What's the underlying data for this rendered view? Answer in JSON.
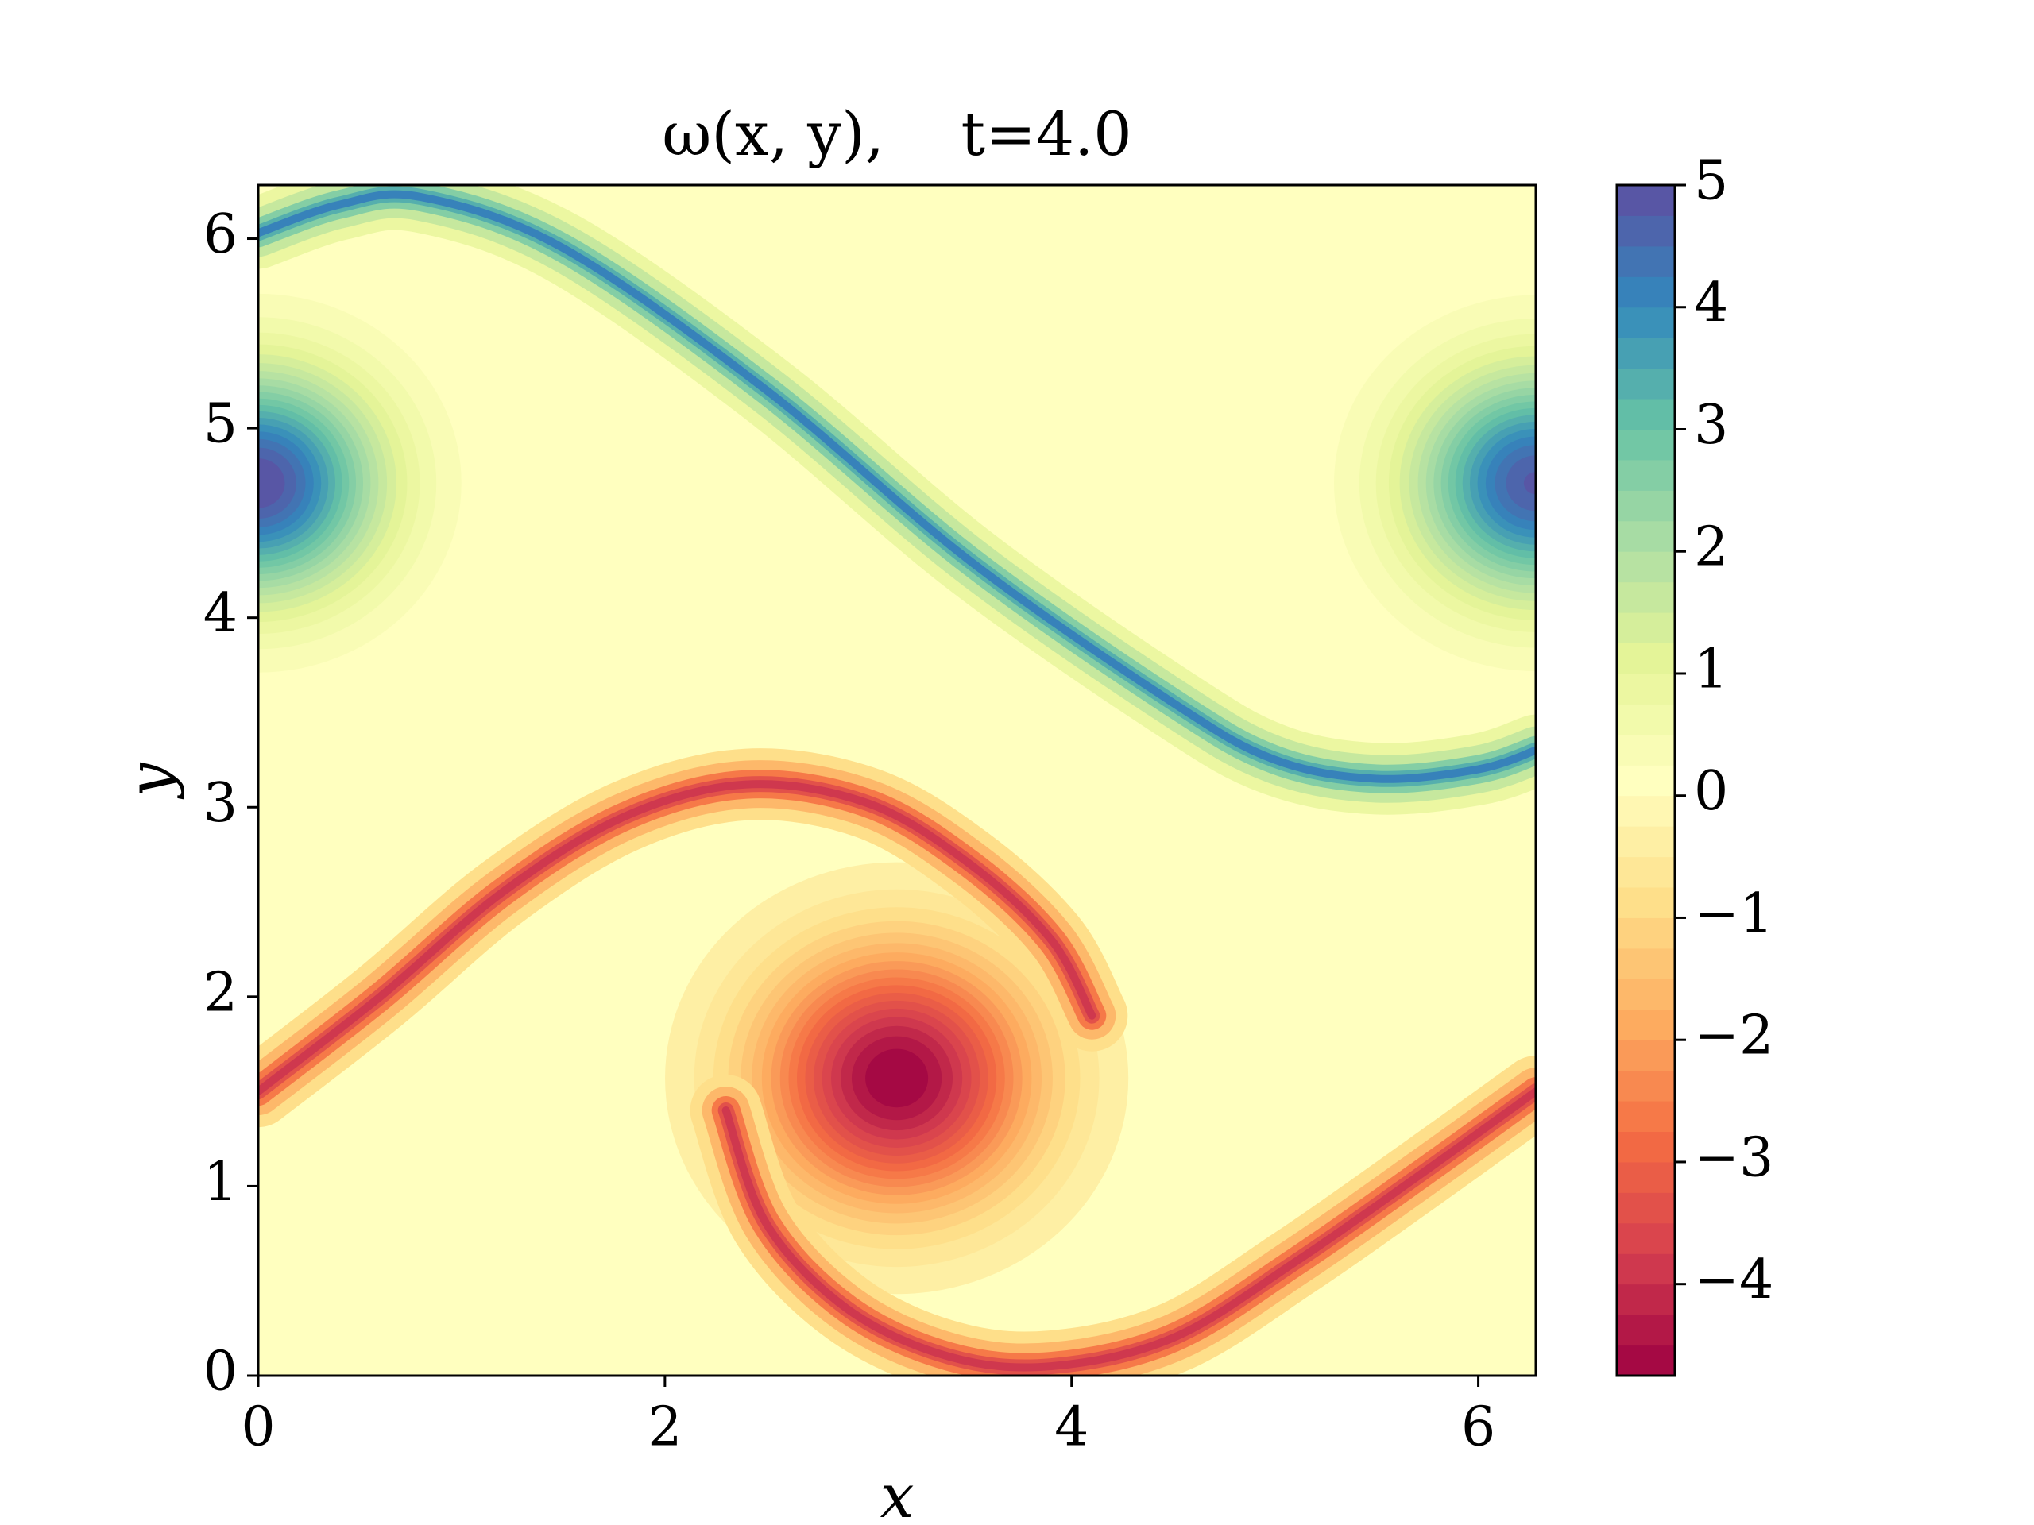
{
  "chart_data": {
    "type": "contour",
    "title": "ω(x, y),    t=4.0",
    "xlabel": "x",
    "ylabel": "y",
    "xlim": [
      0,
      6.283
    ],
    "ylim": [
      0,
      6.283
    ],
    "xticks": [
      0,
      2,
      4,
      6
    ],
    "yticks": [
      0,
      1,
      2,
      3,
      4,
      5,
      6
    ],
    "clim": [
      -4.75,
      5
    ],
    "level_step": 0.25,
    "cticks": [
      {
        "value": -4,
        "label": "−4"
      },
      {
        "value": -3,
        "label": "−3"
      },
      {
        "value": -2,
        "label": "−2"
      },
      {
        "value": -1,
        "label": "−1"
      },
      0,
      1,
      2,
      3,
      4,
      5
    ],
    "colormap": [
      "#9e0142",
      "#d53e4f",
      "#f46d43",
      "#fdae61",
      "#fee08b",
      "#ffffbf",
      "#e6f598",
      "#abdda4",
      "#66c2a5",
      "#3288bd",
      "#5e4fa2"
    ],
    "background_value": 0,
    "vortices": [
      {
        "x": 0,
        "y": 4.71,
        "value": 5,
        "radius": 1.0
      },
      {
        "x": 6.283,
        "y": 4.71,
        "value": 4.8,
        "radius": 1.0
      },
      {
        "x": 3.14,
        "y": 1.57,
        "value": -4.75,
        "radius": 1.15
      }
    ],
    "filaments": [
      {
        "value": 4,
        "x": [
          0,
          0.4,
          0.8,
          1.5,
          2.5,
          3.5,
          4.5,
          5.0,
          5.5,
          6.0,
          6.283
        ],
        "y": [
          6.03,
          6.18,
          6.22,
          5.95,
          5.2,
          4.3,
          3.55,
          3.25,
          3.15,
          3.2,
          3.3
        ]
      },
      {
        "value": -4,
        "x": [
          0,
          0.6,
          1.2,
          1.8,
          2.4,
          3.0,
          3.5,
          3.9,
          4.1
        ],
        "y": [
          1.5,
          2.0,
          2.55,
          2.95,
          3.12,
          3.02,
          2.7,
          2.3,
          1.9
        ]
      },
      {
        "value": -4,
        "x": [
          2.3,
          2.5,
          2.9,
          3.4,
          3.9,
          4.5,
          5.1,
          5.7,
          6.283
        ],
        "y": [
          1.4,
          0.8,
          0.35,
          0.1,
          0.05,
          0.2,
          0.6,
          1.05,
          1.5
        ]
      }
    ]
  }
}
